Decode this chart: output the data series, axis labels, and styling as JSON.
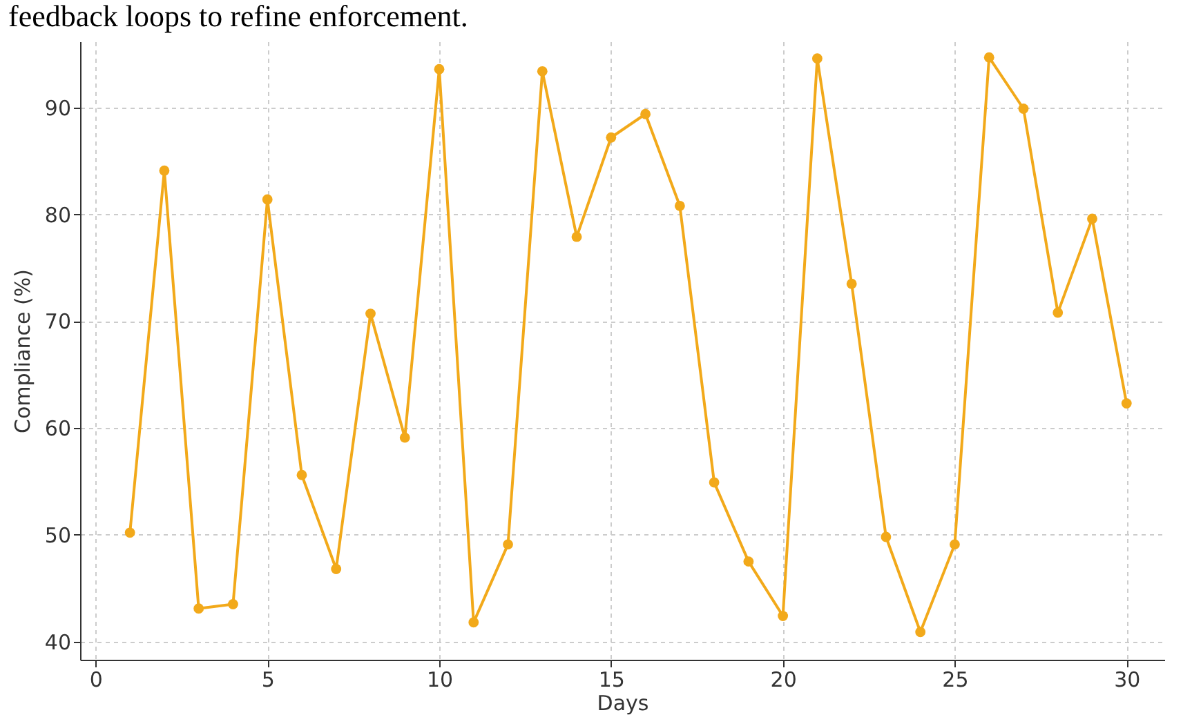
{
  "chart_data": {
    "type": "line",
    "xlabel": "Days",
    "ylabel": "Compliance (%)",
    "annotations": [
      "feedback loops to refine enforcement."
    ],
    "x": [
      1,
      2,
      3,
      4,
      5,
      6,
      7,
      8,
      9,
      10,
      11,
      12,
      13,
      14,
      15,
      16,
      17,
      18,
      19,
      20,
      21,
      22,
      23,
      24,
      25,
      26,
      27,
      28,
      29,
      30
    ],
    "series": [
      {
        "color": "#f2a91a",
        "values": [
          50.2,
          84.1,
          43.1,
          43.5,
          81.4,
          55.6,
          46.8,
          70.7,
          59.1,
          93.6,
          41.8,
          49.1,
          93.4,
          77.9,
          87.2,
          89.4,
          80.8,
          54.9,
          47.5,
          42.4,
          94.6,
          73.5,
          49.8,
          40.9,
          49.1,
          94.7,
          89.9,
          70.8,
          79.6,
          62.3
        ]
      }
    ],
    "xlim": [
      -0.45,
      31.1
    ],
    "xticks": [
      0,
      5,
      10,
      15,
      20,
      25,
      30
    ],
    "ylim": [
      38.3,
      96.2
    ],
    "yticks": [
      40,
      50,
      60,
      70,
      80,
      90
    ],
    "grid": true,
    "marker": "circle",
    "line_style": "solid"
  }
}
